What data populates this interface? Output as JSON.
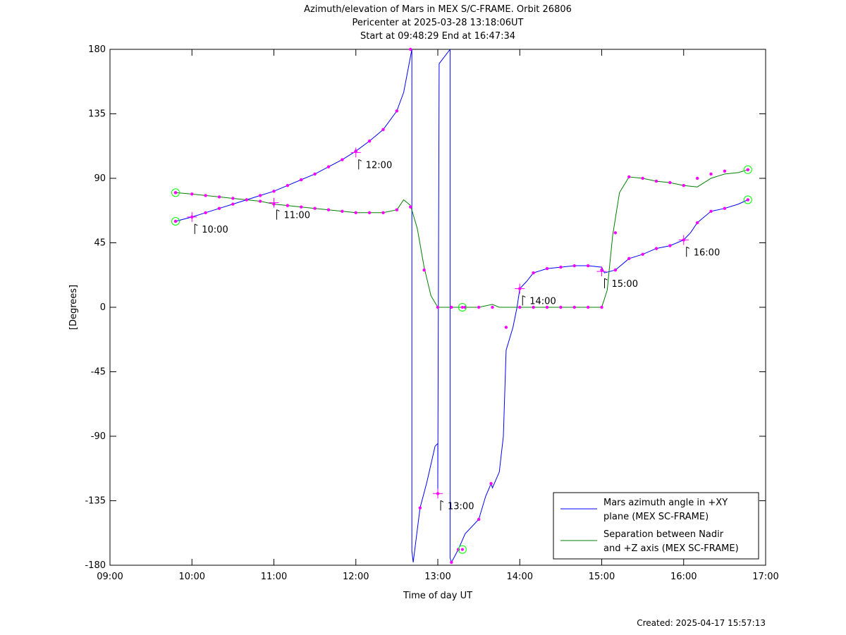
{
  "colors": {
    "azimuth": "#0000ff",
    "separation": "#008000",
    "marker": "#ff00ff",
    "endpoint": "#00ff00"
  },
  "chart_data": {
    "type": "line",
    "title": [
      "Azimuth/elevation of Mars in MEX S/C-FRAME.  Orbit 26806",
      "Pericenter at 2025-03-28 13:18:06UT",
      "Start at 09:48:29 End at 16:47:34"
    ],
    "xlabel": "Time of day UT",
    "ylabel": "[Degrees]",
    "xlim": [
      "09:00",
      "17:00"
    ],
    "ylim": [
      -180,
      180
    ],
    "xticks": [
      "09:00",
      "10:00",
      "11:00",
      "12:00",
      "13:00",
      "14:00",
      "15:00",
      "16:00",
      "17:00"
    ],
    "yticks": [
      180,
      135,
      90,
      45,
      0,
      -45,
      -90,
      -135,
      -180
    ],
    "grid": false,
    "legend_position": "bottom-right",
    "legend": [
      [
        "Mars azimuth angle in +XY",
        "plane (MEX SC-FRAME)"
      ],
      [
        "Separation between Nadir",
        "and +Z axis (MEX SC-FRAME)"
      ]
    ],
    "hour_labels": [
      {
        "label": "10:00",
        "x": "10:00",
        "y": 63
      },
      {
        "label": "11:00",
        "x": "11:00",
        "y": 73
      },
      {
        "label": "12:00",
        "x": "12:00",
        "y": 108
      },
      {
        "label": "13:00",
        "x": "13:00",
        "y": -130
      },
      {
        "label": "14:00",
        "x": "14:00",
        "y": 13
      },
      {
        "label": "15:00",
        "x": "15:00",
        "y": 25
      },
      {
        "label": "16:00",
        "x": "16:00",
        "y": 47
      }
    ],
    "series": [
      {
        "name": "Mars azimuth angle in +XY plane (MEX SC-FRAME)",
        "color": "#0000ff",
        "points": [
          [
            "09:48",
            60
          ],
          [
            "10:00",
            63
          ],
          [
            "10:10",
            66
          ],
          [
            "10:20",
            69
          ],
          [
            "10:30",
            72
          ],
          [
            "10:40",
            75
          ],
          [
            "10:50",
            78
          ],
          [
            "11:00",
            81
          ],
          [
            "11:10",
            85
          ],
          [
            "11:20",
            89
          ],
          [
            "11:30",
            93
          ],
          [
            "11:40",
            98
          ],
          [
            "11:50",
            103
          ],
          [
            "12:00",
            109
          ],
          [
            "12:10",
            116
          ],
          [
            "12:20",
            124
          ],
          [
            "12:30",
            137
          ],
          [
            "12:35",
            150
          ],
          [
            "12:41",
            180
          ],
          null,
          [
            "12:41",
            180
          ],
          [
            "12:41",
            -170
          ],
          [
            "12:42",
            -178
          ],
          [
            "12:47",
            -140
          ],
          [
            "12:52",
            -122
          ],
          [
            "12:58",
            -97
          ],
          [
            "13:00",
            -95
          ],
          [
            "13:00",
            -115
          ],
          [
            "13:00",
            -130
          ],
          [
            "13:00",
            -120
          ],
          [
            "13:01",
            170
          ],
          [
            "13:09",
            180
          ],
          null,
          [
            "13:09",
            180
          ],
          [
            "13:09",
            -175
          ],
          [
            "13:10",
            -178
          ],
          [
            "13:15",
            -169
          ],
          [
            "13:20",
            -158
          ],
          [
            "13:30",
            -148
          ],
          [
            "13:35",
            -132
          ],
          [
            "13:39",
            -123
          ],
          [
            "13:40",
            -126
          ],
          [
            "13:45",
            -115
          ],
          [
            "13:48",
            -90
          ],
          [
            "13:50",
            -30
          ],
          [
            "13:55",
            -14
          ],
          [
            "13:58",
            0
          ],
          [
            "14:00",
            13
          ],
          [
            "14:05",
            18
          ],
          [
            "14:10",
            24
          ],
          [
            "14:20",
            27
          ],
          [
            "14:30",
            28
          ],
          [
            "14:40",
            29
          ],
          [
            "14:50",
            29
          ],
          [
            "15:00",
            28
          ],
          [
            "15:02",
            24
          ],
          [
            "15:10",
            26
          ],
          [
            "15:20",
            34
          ],
          [
            "15:30",
            37
          ],
          [
            "15:40",
            41
          ],
          [
            "15:50",
            43
          ],
          [
            "16:00",
            47
          ],
          [
            "16:05",
            52
          ],
          [
            "16:10",
            59
          ],
          [
            "16:20",
            67
          ],
          [
            "16:30",
            69
          ],
          [
            "16:40",
            72
          ],
          [
            "16:47",
            75
          ]
        ]
      },
      {
        "name": "Separation between Nadir and +Z axis (MEX SC-FRAME)",
        "color": "#008000",
        "points": [
          [
            "09:48",
            80
          ],
          [
            "10:00",
            79
          ],
          [
            "10:10",
            78
          ],
          [
            "10:20",
            77
          ],
          [
            "10:30",
            76
          ],
          [
            "10:40",
            75
          ],
          [
            "10:50",
            74
          ],
          [
            "11:00",
            72
          ],
          [
            "11:10",
            71
          ],
          [
            "11:20",
            70
          ],
          [
            "11:30",
            69
          ],
          [
            "11:40",
            68
          ],
          [
            "11:50",
            67
          ],
          [
            "12:00",
            66
          ],
          [
            "12:10",
            66
          ],
          [
            "12:20",
            66
          ],
          [
            "12:30",
            68
          ],
          [
            "12:35",
            75
          ],
          [
            "12:40",
            71
          ],
          [
            "12:45",
            55
          ],
          [
            "12:50",
            28
          ],
          [
            "12:55",
            8
          ],
          [
            "13:00",
            0
          ],
          [
            "13:10",
            0
          ],
          [
            "13:20",
            0
          ],
          [
            "13:30",
            0
          ],
          [
            "13:40",
            2
          ],
          [
            "13:45",
            0
          ],
          [
            "14:00",
            0
          ],
          [
            "14:30",
            0
          ],
          [
            "15:00",
            0
          ],
          [
            "15:04",
            12
          ],
          [
            "15:08",
            50
          ],
          [
            "15:13",
            80
          ],
          [
            "15:20",
            91
          ],
          [
            "15:30",
            90
          ],
          [
            "15:40",
            88
          ],
          [
            "15:50",
            87
          ],
          [
            "16:00",
            85
          ],
          [
            "16:10",
            84
          ],
          [
            "16:20",
            90
          ],
          [
            "16:30",
            93
          ],
          [
            "16:40",
            94
          ],
          [
            "16:47",
            96
          ]
        ]
      }
    ],
    "markers": [
      [
        "09:48",
        60
      ],
      [
        "10:00",
        63
      ],
      [
        "10:10",
        66
      ],
      [
        "10:20",
        69
      ],
      [
        "10:30",
        72
      ],
      [
        "10:40",
        75
      ],
      [
        "10:50",
        78
      ],
      [
        "11:00",
        81
      ],
      [
        "11:10",
        85
      ],
      [
        "11:20",
        89
      ],
      [
        "11:30",
        93
      ],
      [
        "11:40",
        98
      ],
      [
        "11:50",
        103
      ],
      [
        "12:00",
        109
      ],
      [
        "12:10",
        116
      ],
      [
        "12:20",
        124
      ],
      [
        "12:30",
        137
      ],
      [
        "12:40",
        180
      ],
      [
        "12:47",
        -140
      ],
      [
        "13:00",
        -130
      ],
      [
        "13:10",
        -178
      ],
      [
        "13:15",
        -169
      ],
      [
        "13:30",
        -148
      ],
      [
        "13:39",
        -123
      ],
      [
        "13:50",
        -14
      ],
      [
        "14:00",
        13
      ],
      [
        "14:10",
        24
      ],
      [
        "14:20",
        27
      ],
      [
        "14:30",
        28
      ],
      [
        "14:40",
        29
      ],
      [
        "14:50",
        29
      ],
      [
        "15:00",
        26
      ],
      [
        "15:10",
        26
      ],
      [
        "15:20",
        34
      ],
      [
        "15:30",
        37
      ],
      [
        "15:40",
        41
      ],
      [
        "15:50",
        43
      ],
      [
        "16:00",
        47
      ],
      [
        "16:10",
        59
      ],
      [
        "16:20",
        67
      ],
      [
        "16:30",
        69
      ],
      [
        "16:47",
        75
      ],
      [
        "09:48",
        80
      ],
      [
        "10:00",
        79
      ],
      [
        "10:10",
        78
      ],
      [
        "10:20",
        77
      ],
      [
        "10:30",
        76
      ],
      [
        "10:40",
        75
      ],
      [
        "10:50",
        74
      ],
      [
        "11:00",
        72
      ],
      [
        "11:10",
        71
      ],
      [
        "11:20",
        70
      ],
      [
        "11:30",
        69
      ],
      [
        "11:40",
        68
      ],
      [
        "11:50",
        67
      ],
      [
        "12:00",
        66
      ],
      [
        "12:10",
        66
      ],
      [
        "12:20",
        66
      ],
      [
        "12:30",
        68
      ],
      [
        "12:40",
        70
      ],
      [
        "12:50",
        26
      ],
      [
        "13:00",
        0
      ],
      [
        "13:10",
        0
      ],
      [
        "13:20",
        0
      ],
      [
        "13:30",
        0
      ],
      [
        "13:40",
        0
      ],
      [
        "14:00",
        0
      ],
      [
        "14:10",
        0
      ],
      [
        "14:20",
        0
      ],
      [
        "14:30",
        0
      ],
      [
        "14:40",
        0
      ],
      [
        "14:50",
        0
      ],
      [
        "15:00",
        0
      ],
      [
        "15:10",
        52
      ],
      [
        "15:20",
        91
      ],
      [
        "15:30",
        90
      ],
      [
        "15:40",
        88
      ],
      [
        "15:50",
        87
      ],
      [
        "16:00",
        85
      ],
      [
        "16:10",
        90
      ],
      [
        "16:20",
        93
      ],
      [
        "16:30",
        95
      ],
      [
        "16:47",
        96
      ]
    ],
    "endpoint_markers": [
      [
        "09:48",
        80
      ],
      [
        "09:48",
        60
      ],
      [
        "13:18",
        0
      ],
      [
        "13:18",
        -169
      ],
      [
        "16:47",
        96
      ],
      [
        "16:47",
        75
      ]
    ]
  },
  "footer": {
    "created": "Created: 2025-04-17 15:57:13"
  }
}
